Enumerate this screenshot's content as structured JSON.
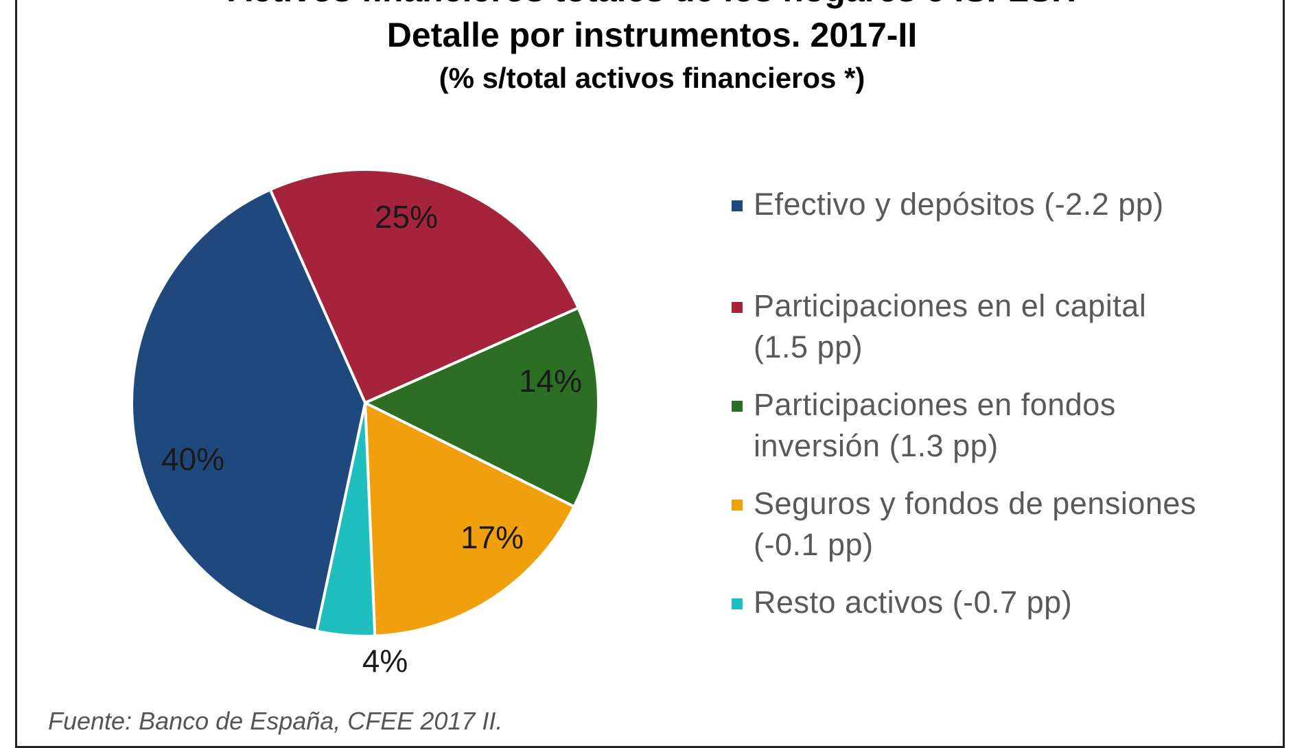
{
  "title_top": "Activos financieros totales de los hogares e ISFLSH",
  "title": "Detalle por instrumentos. 2017-II",
  "subtitle": "(% s/total activos financieros *)",
  "source": "Fuente: Banco de España, CFEE 2017 II.",
  "chart_data": {
    "type": "pie",
    "title": "Detalle por instrumentos. 2017-II",
    "subtitle": "(% s/total activos financieros *)",
    "legend_position": "right",
    "slices": [
      {
        "label": "Efectivo y depósitos",
        "change": "(-2.2 pp)",
        "value": 40,
        "value_label": "40%",
        "color": "#1f497d"
      },
      {
        "label": "Participaciones en el capital",
        "change": "(1.5 pp)",
        "value": 25,
        "value_label": "25%",
        "color": "#a5243c"
      },
      {
        "label": "Participaciones en fondos inversión",
        "change": "(1.3 pp)",
        "value": 14,
        "value_label": "14%",
        "color": "#2c6e23"
      },
      {
        "label": "Seguros y fondos de pensiones",
        "change": "(-0.1 pp)",
        "value": 17,
        "value_label": "17%",
        "color": "#f0a00c"
      },
      {
        "label": "Resto activos",
        "change": "(-0.7 pp)",
        "value": 4,
        "value_label": "4%",
        "color": "#1fbfbf"
      }
    ],
    "legend": [
      {
        "line1": "Efectivo y depósitos  (-2.2 pp)",
        "line2": ""
      },
      {
        "line1": "Participaciones en el capital",
        "line2": "(1.5 pp)"
      },
      {
        "line1": "Participaciones en fondos",
        "line2": "inversión  (1.3 pp)"
      },
      {
        "line1": "Seguros y fondos de pensiones",
        "line2": "(-0.1 pp)"
      },
      {
        "line1": "Resto activos  (-0.7 pp)",
        "line2": ""
      }
    ]
  }
}
